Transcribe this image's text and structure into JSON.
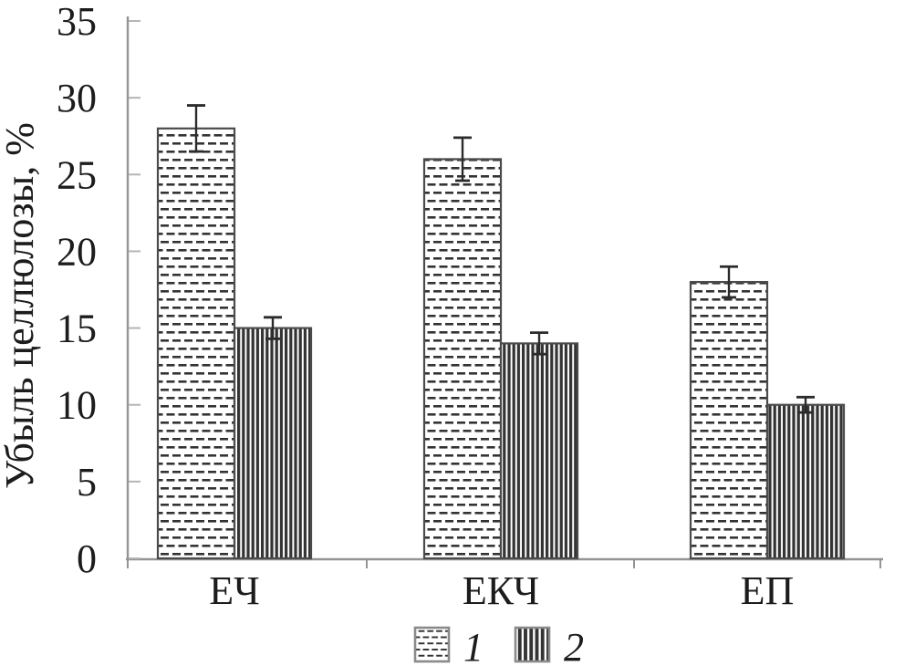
{
  "figure": {
    "colors": {
      "background": "#ffffff",
      "ink": "#1c1c1c",
      "axis": "#949494",
      "tick_minor": "#b5b5b5",
      "bar_border": "#4b4b4b",
      "pattern": "#333333",
      "error_bar": "#2b2b2b"
    }
  },
  "chart_data": {
    "type": "bar",
    "title": "",
    "xlabel": "",
    "ylabel": "Убыль целлюлозы, %",
    "categories": [
      "ЕЧ",
      "ЕКЧ",
      "ЕП"
    ],
    "series": [
      {
        "name": "1",
        "fill_pattern": "horizontal-dashes",
        "values": [
          28,
          26,
          18
        ],
        "errors": [
          1.5,
          1.4,
          1.0
        ]
      },
      {
        "name": "2",
        "fill_pattern": "vertical-stripes",
        "values": [
          15,
          14,
          10
        ],
        "errors": [
          0.7,
          0.7,
          0.5
        ]
      }
    ],
    "ylim": [
      0,
      35
    ],
    "yticks": [
      0,
      5,
      10,
      15,
      20,
      25,
      30,
      35
    ],
    "grid": false,
    "error_bars": true,
    "legend_position": "bottom-center",
    "legend": [
      {
        "label": "1",
        "pattern": "horizontal-dashes"
      },
      {
        "label": "2",
        "pattern": "vertical-stripes"
      }
    ]
  }
}
